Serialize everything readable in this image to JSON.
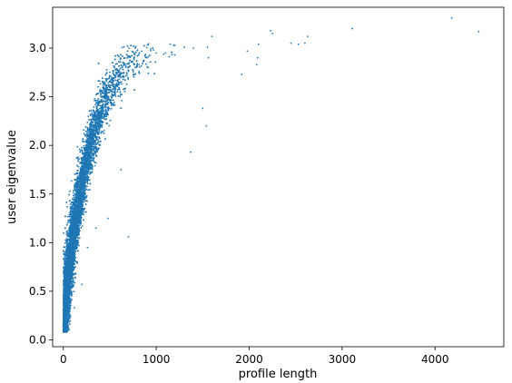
{
  "chart_data": {
    "type": "scatter",
    "title": "",
    "xlabel": "profile length",
    "ylabel": "user eigenvalue",
    "xlim": [
      -115,
      4740
    ],
    "ylim": [
      -0.07,
      3.42
    ],
    "xticks": [
      0,
      1000,
      2000,
      3000,
      4000
    ],
    "yticks": [
      0.0,
      0.5,
      1.0,
      1.5,
      2.0,
      2.5,
      3.0
    ],
    "xtick_labels": [
      "0",
      "1000",
      "2000",
      "3000",
      "4000"
    ],
    "ytick_labels": [
      "0.0",
      "0.5",
      "1.0",
      "1.5",
      "2.0",
      "2.5",
      "3.0"
    ],
    "grid": false,
    "marker_color": "#1f77b4",
    "series": [
      {
        "name": "",
        "points": [
          [
            4180,
            3.31
          ],
          [
            4470,
            3.17
          ],
          [
            3110,
            3.2
          ],
          [
            2630,
            3.12
          ],
          [
            2600,
            3.05
          ],
          [
            2530,
            3.04
          ],
          [
            2450,
            3.05
          ],
          [
            2230,
            3.18
          ],
          [
            2250,
            3.15
          ],
          [
            2100,
            3.04
          ],
          [
            2090,
            2.9
          ],
          [
            2080,
            2.83
          ],
          [
            1980,
            2.97
          ],
          [
            1920,
            2.73
          ],
          [
            1600,
            3.12
          ],
          [
            1550,
            3.01
          ],
          [
            1540,
            2.2
          ],
          [
            1500,
            2.38
          ],
          [
            1370,
            1.93
          ],
          [
            1560,
            2.9
          ],
          [
            1400,
            3.0
          ],
          [
            1300,
            3.01
          ],
          [
            1200,
            2.93
          ],
          [
            1150,
            3.04
          ],
          [
            1100,
            2.95
          ],
          [
            1000,
            2.95
          ],
          [
            900,
            2.9
          ],
          [
            700,
            1.06
          ],
          [
            620,
            1.75
          ],
          [
            480,
            1.25
          ],
          [
            350,
            1.15
          ],
          [
            200,
            0.57
          ],
          [
            260,
            0.95
          ],
          [
            120,
            0.33
          ],
          [
            40,
            0.1
          ]
        ]
      }
    ]
  }
}
